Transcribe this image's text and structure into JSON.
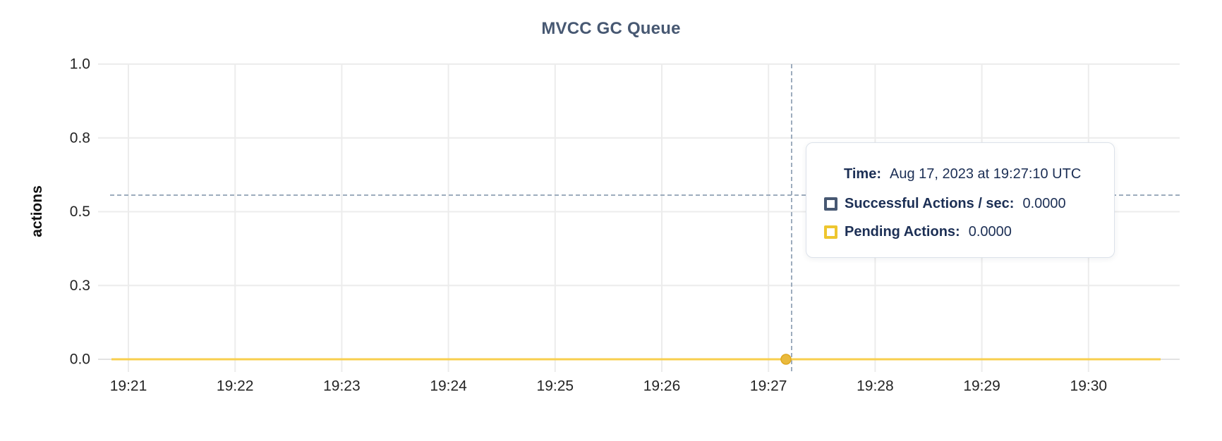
{
  "chart_data": {
    "type": "line",
    "title": "MVCC GC Queue",
    "ylabel": "actions",
    "ylim": [
      0,
      1
    ],
    "grid": true,
    "x_ticks": [
      "19:21",
      "19:22",
      "19:23",
      "19:24",
      "19:25",
      "19:26",
      "19:27",
      "19:28",
      "19:29",
      "19:30"
    ],
    "y_ticks": [
      {
        "value": 0.0,
        "label": "0.0"
      },
      {
        "value": 0.25,
        "label": "0.3"
      },
      {
        "value": 0.5,
        "label": "0.5"
      },
      {
        "value": 0.75,
        "label": "0.8"
      },
      {
        "value": 1.0,
        "label": "1.0"
      }
    ],
    "series": [
      {
        "name": "Successful Actions / sec",
        "color": "#475872",
        "constant_value": 0.0
      },
      {
        "name": "Pending Actions",
        "color": "#eec62f",
        "line_color": "#f8cf4e",
        "constant_value": 0.0
      }
    ],
    "hover_point": {
      "time": "19:27:10",
      "value": 0.0
    }
  },
  "tooltip": {
    "time_label": "Time:",
    "time_value": "Aug 17, 2023 at 19:27:10 UTC",
    "rows": [
      {
        "label": "Successful Actions / sec:",
        "value": "0.0000",
        "swatch_color": "#475872"
      },
      {
        "label": "Pending Actions:",
        "value": "0.0000",
        "swatch_color": "#eec62f"
      }
    ]
  },
  "colors": {
    "title": "#475872",
    "axis_text": "#242424",
    "grid": "#ececec",
    "zero_line": "#e2e2e2",
    "crosshair": "#9dacbd",
    "tooltip_text": "#1c2f55",
    "pending_line": "#f8cf4e",
    "pending_dot_fill": "#eaba3c",
    "pending_dot_stroke": "#dfa821"
  }
}
